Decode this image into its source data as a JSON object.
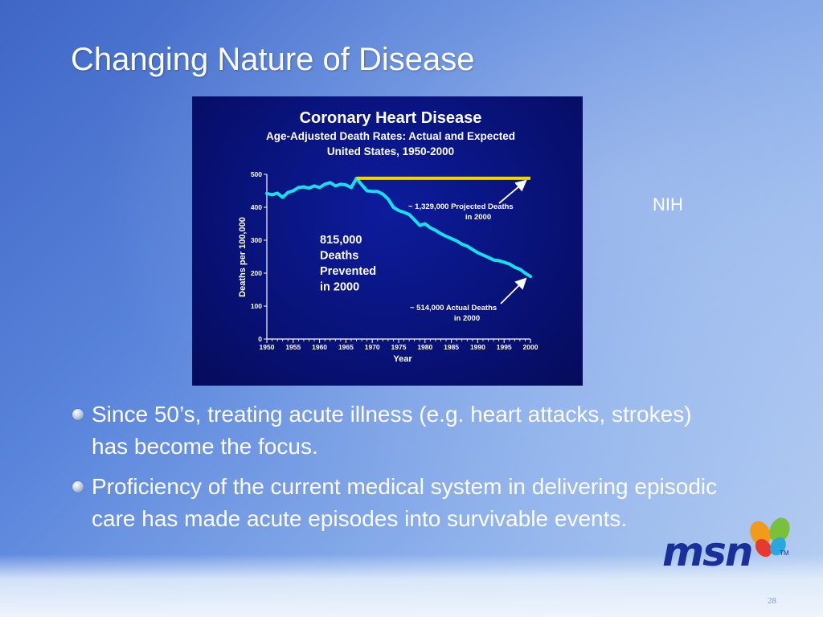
{
  "slide": {
    "title": "Changing Nature of Disease",
    "source_note": "NIH",
    "page_number": "28",
    "bullets": [
      "Since 50’s, treating acute illness (e.g. heart attacks, strokes) has become the focus.",
      "Proficiency of the current medical system in delivering episodic care has made acute episodes into survivable events."
    ],
    "logo": {
      "text": "msn",
      "tm": "TM"
    }
  },
  "colors": {
    "chart_background": "#07106f",
    "actual_line": "#17e0ec",
    "projected_line": "#f2d400",
    "text": "#ffffff"
  },
  "chart_data": {
    "type": "line",
    "title": "Coronary Heart Disease",
    "subtitle_lines": [
      "Age-Adjusted Death Rates: Actual and Expected",
      "United States, 1950-2000"
    ],
    "xlabel": "Year",
    "ylabel": "Deaths per 100,000",
    "xlim": [
      1950,
      2000
    ],
    "ylim": [
      0,
      500
    ],
    "x_ticks": [
      "1950",
      "1955",
      "1960",
      "1965",
      "1970",
      "1975",
      "1980",
      "1985",
      "1990",
      "1995",
      "2000"
    ],
    "y_ticks": [
      "0",
      "100",
      "200",
      "300",
      "400",
      "500"
    ],
    "series": [
      {
        "key": "actual",
        "x": [
          1950,
          1951,
          1952,
          1953,
          1954,
          1955,
          1956,
          1957,
          1958,
          1959,
          1960,
          1961,
          1962,
          1963,
          1964,
          1965,
          1966,
          1967,
          1968,
          1969,
          1970,
          1971,
          1972,
          1973,
          1974,
          1975,
          1976,
          1977,
          1978,
          1979,
          1980,
          1981,
          1982,
          1983,
          1984,
          1985,
          1986,
          1987,
          1988,
          1989,
          1990,
          1991,
          1992,
          1993,
          1994,
          1995,
          1996,
          1997,
          1998,
          1999,
          2000
        ],
        "y": [
          442,
          438,
          443,
          430,
          445,
          450,
          460,
          462,
          458,
          465,
          460,
          470,
          475,
          465,
          470,
          468,
          460,
          488,
          468,
          450,
          448,
          448,
          440,
          425,
          400,
          390,
          385,
          378,
          362,
          345,
          350,
          338,
          330,
          320,
          312,
          305,
          298,
          288,
          282,
          272,
          262,
          255,
          248,
          240,
          238,
          233,
          228,
          218,
          212,
          200,
          190
        ]
      },
      {
        "key": "projected",
        "x": [
          1967,
          2000
        ],
        "y": [
          488,
          488
        ]
      }
    ],
    "annotations": [
      {
        "key": "prevented",
        "lines": [
          "815,000",
          "Deaths",
          "Prevented",
          "in 2000"
        ]
      },
      {
        "key": "projected",
        "lines": [
          "~ 1,329,000 Projected Deaths",
          "in 2000"
        ]
      },
      {
        "key": "actual",
        "lines": [
          "~ 514,000 Actual Deaths",
          "in 2000"
        ]
      }
    ]
  }
}
